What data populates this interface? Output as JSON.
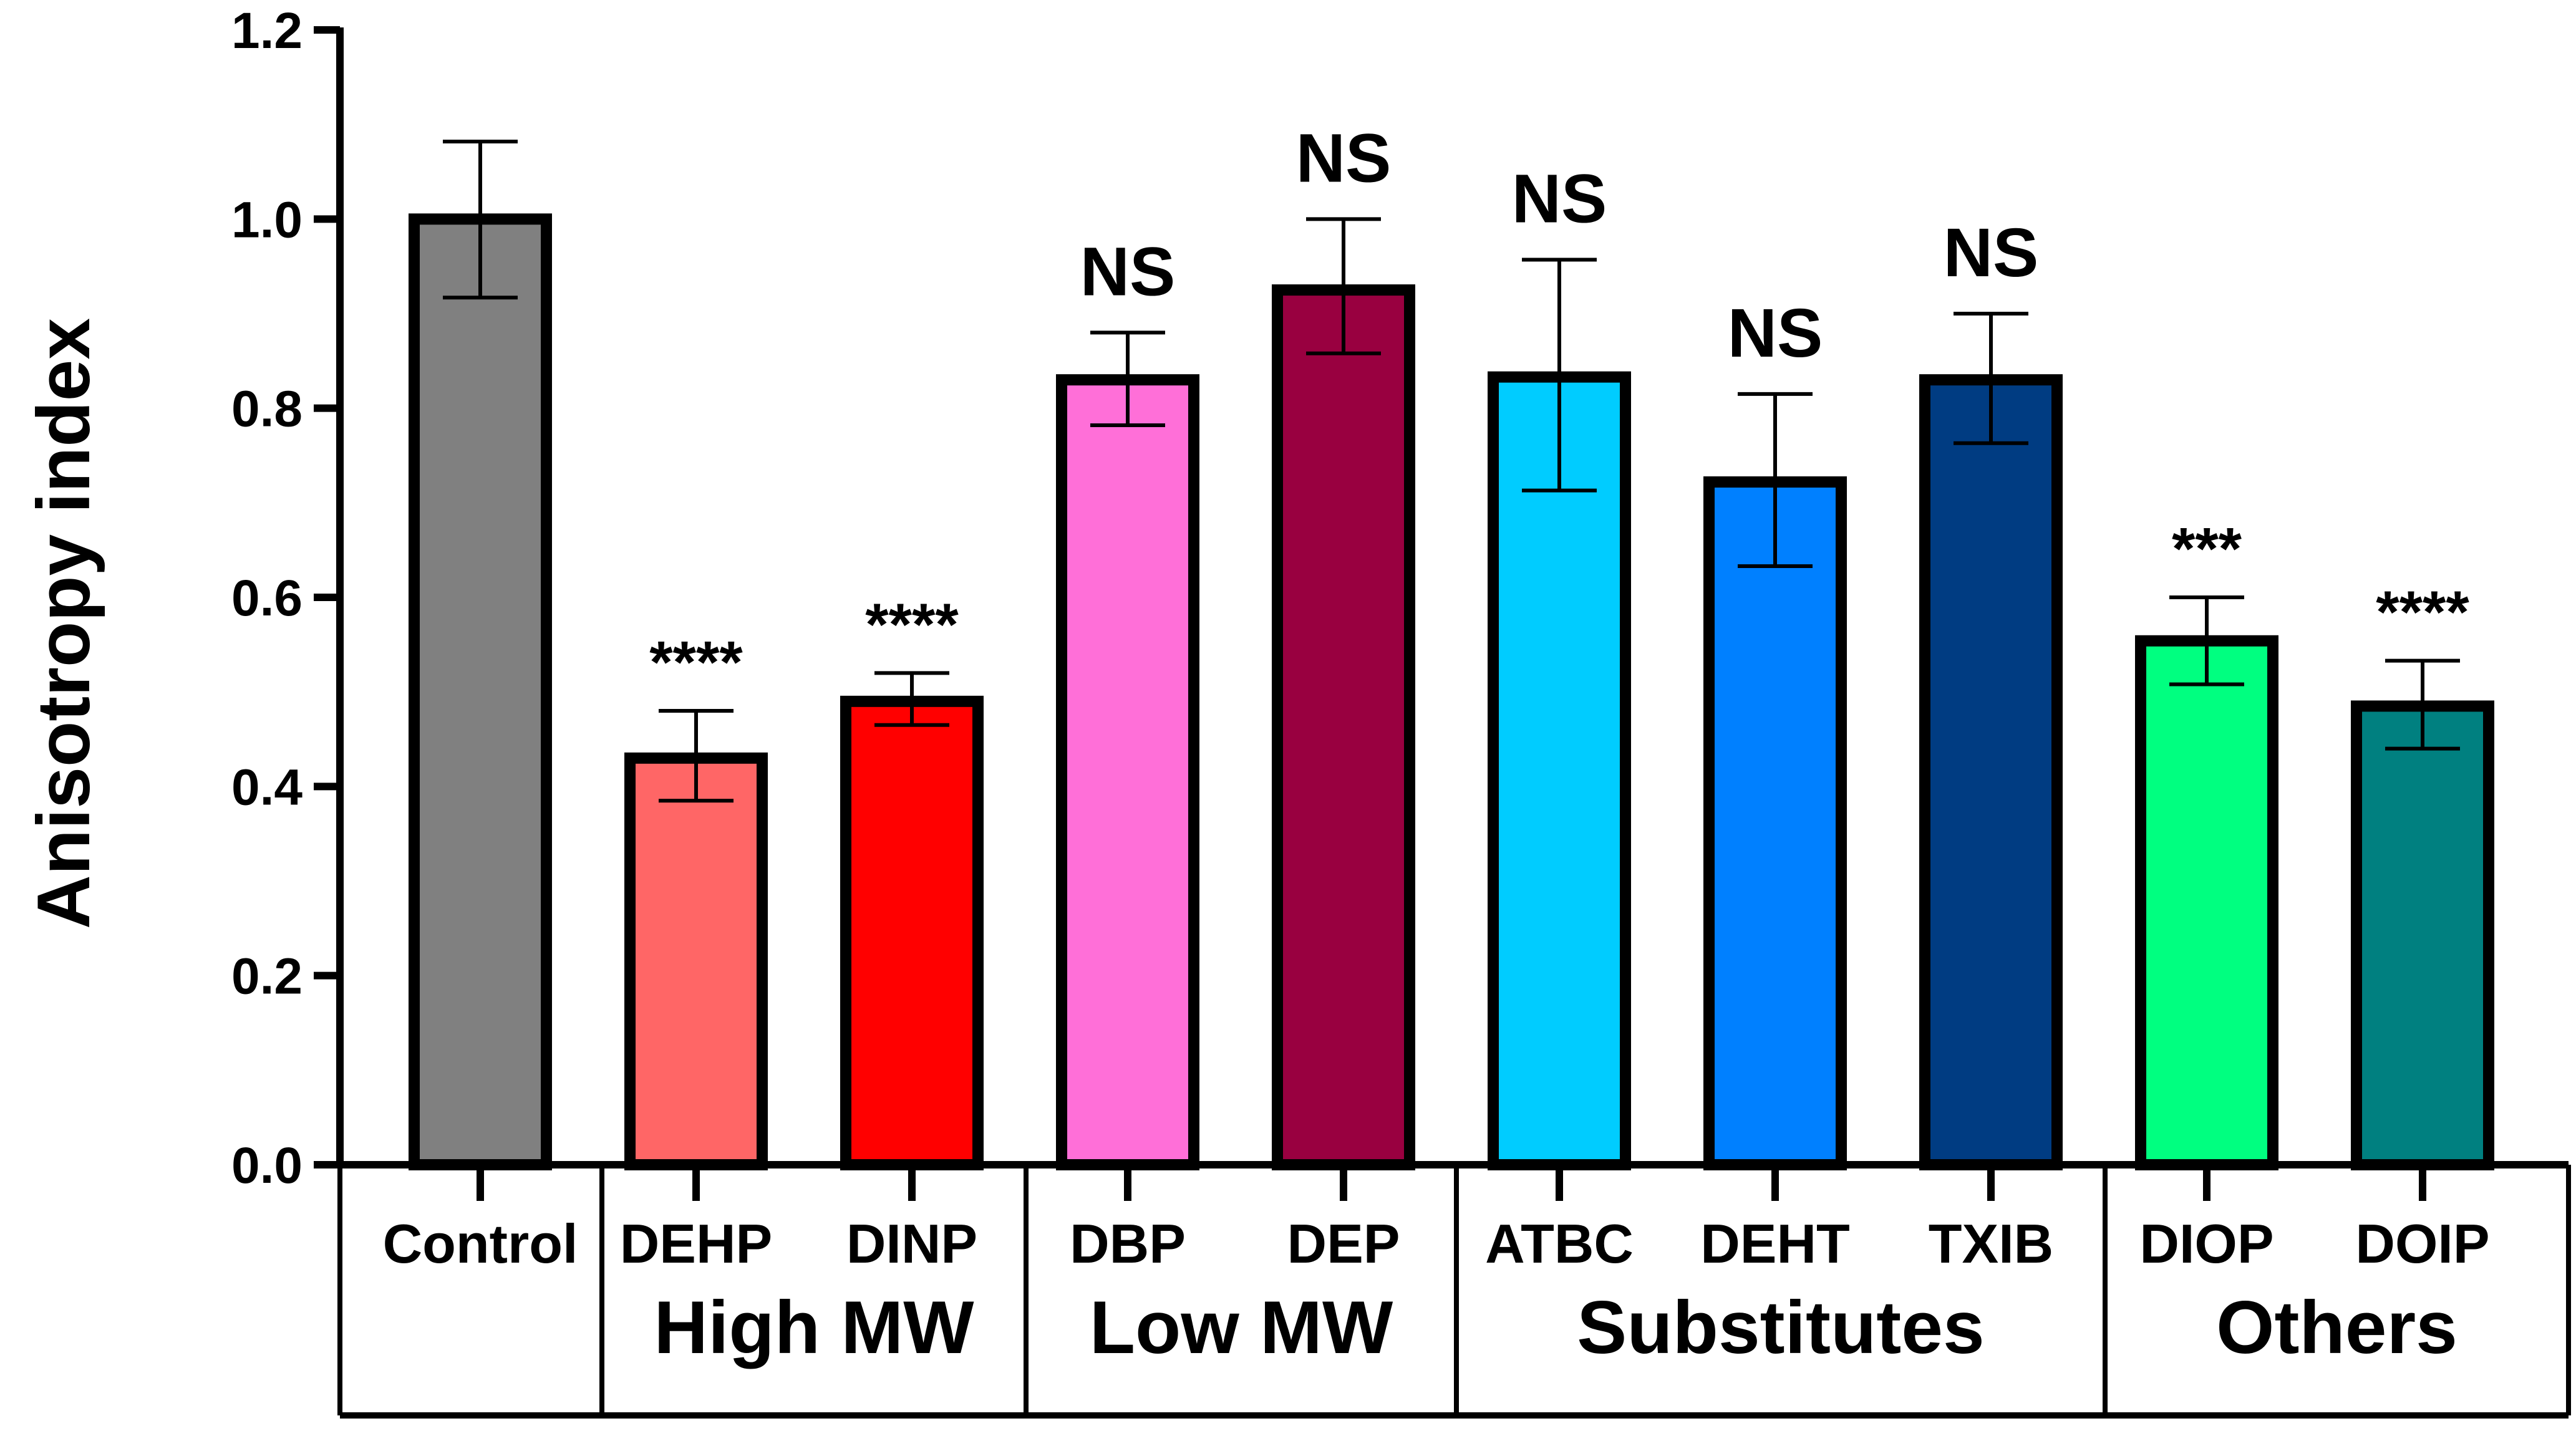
{
  "chart_data": {
    "type": "bar",
    "title": "",
    "xlabel": "",
    "ylabel": "Anisotropy index",
    "ylim": [
      0,
      1.2
    ],
    "yticks": [
      "0.0",
      "0.2",
      "0.4",
      "0.6",
      "0.8",
      "1.0",
      "1.2"
    ],
    "grid": false,
    "categories": [
      "Control",
      "DEHP",
      "DINP",
      "DBP",
      "DEP",
      "ATBC",
      "DEHT",
      "TXIB",
      "DIOP",
      "DOIP"
    ],
    "values": [
      1.0,
      0.43,
      0.49,
      0.83,
      0.925,
      0.833,
      0.722,
      0.83,
      0.554,
      0.485
    ],
    "error_low": [
      0.917,
      0.385,
      0.465,
      0.782,
      0.858,
      0.713,
      0.633,
      0.763,
      0.508,
      0.44
    ],
    "error_high": [
      1.082,
      0.48,
      0.52,
      0.88,
      1.0,
      0.957,
      0.815,
      0.9,
      0.6,
      0.533
    ],
    "significance": [
      "",
      "****",
      "****",
      "NS",
      "NS",
      "NS",
      "NS",
      "NS",
      "***",
      "****"
    ],
    "colors": [
      "#808080",
      "#FF6666",
      "#FF0000",
      "#FF6FD8",
      "#990040",
      "#00CCFF",
      "#0080FF",
      "#003C82",
      "#00FF80",
      "#008080"
    ],
    "groups": [
      {
        "label": "",
        "categories": [
          "Control"
        ]
      },
      {
        "label": "High MW",
        "categories": [
          "DEHP",
          "DINP"
        ]
      },
      {
        "label": "Low MW",
        "categories": [
          "DBP",
          "DEP"
        ]
      },
      {
        "label": "Substitutes",
        "categories": [
          "ATBC",
          "DEHT",
          "TXIB"
        ]
      },
      {
        "label": "Others",
        "categories": [
          "DIOP",
          "DOIP"
        ]
      }
    ]
  }
}
